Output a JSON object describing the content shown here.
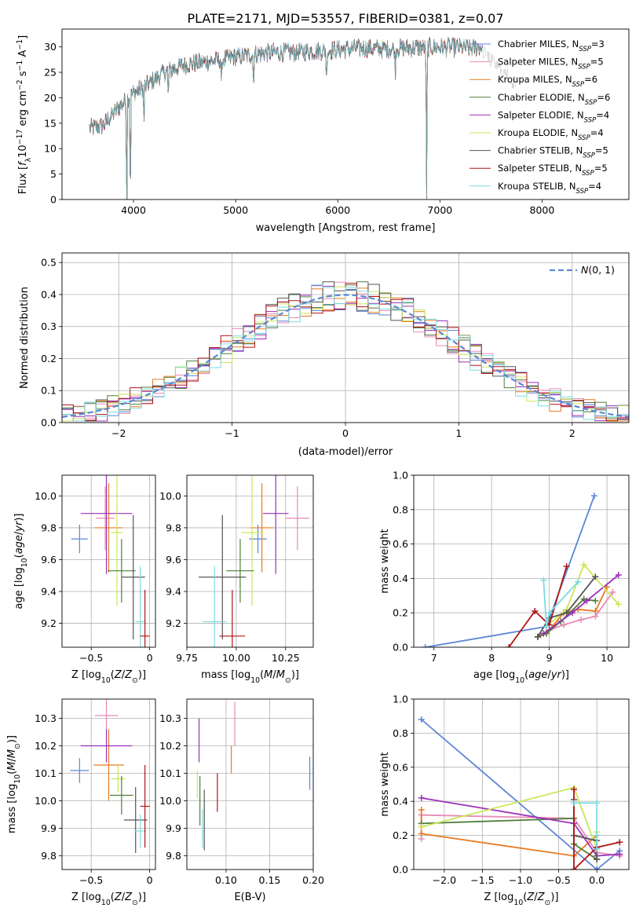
{
  "figure": {
    "title": "PLATE=2171, MJD=53557, FIBERID=0381, z=0.07"
  },
  "colors": {
    "chabrier_miles": "#5b86d6",
    "salpeter_miles": "#e88ab8",
    "kroupa_miles": "#e87b22",
    "chabrier_elodie": "#4f7d3a",
    "salpeter_elodie": "#9b30b8",
    "kroupa_elodie": "#c9e85a",
    "chabrier_stelib": "#555555",
    "salpeter_stelib": "#b01515",
    "kroupa_stelib": "#7ddbe0",
    "grid": "#b0b0b0",
    "normal": "#5b86d6"
  },
  "chart_data": [
    {
      "id": "spectrum",
      "type": "line",
      "title": "PLATE=2171, MJD=53557, FIBERID=0381, z=0.07",
      "xlabel": "wavelength [Angstrom, rest frame]",
      "ylabel": "Flux [f_λ10^-17 erg cm^-2 s^-1 A^-1]",
      "xlim": [
        3300,
        8850
      ],
      "ylim": [
        0,
        33.5
      ],
      "xticks": [
        4000,
        5000,
        6000,
        7000,
        8000
      ],
      "yticks": [
        0,
        5,
        10,
        15,
        20,
        25,
        30
      ],
      "grid": false,
      "legend_position": "top-right",
      "continuum": {
        "x": [
          3570,
          3700,
          3850,
          4000,
          4100,
          4300,
          4500,
          4700,
          5000,
          5300,
          5600,
          5900,
          6200,
          6500,
          6800,
          7100,
          7300,
          7400
        ],
        "y": [
          14,
          14.5,
          18,
          21,
          22,
          25,
          26.5,
          27,
          28,
          28.8,
          29,
          29.3,
          29.8,
          29.6,
          29.9,
          30,
          29.7,
          30
        ]
      },
      "series": [
        {
          "name": "Chabrier MILES, N_SSP=3",
          "label_main": "Chabrier MILES, N",
          "label_tail": "=3",
          "color_key": "chabrier_miles"
        },
        {
          "name": "Salpeter MILES, N_SSP=5",
          "label_main": "Salpeter MILES, N",
          "label_tail": "=5",
          "color_key": "salpeter_miles"
        },
        {
          "name": "Kroupa MILES, N_SSP=6",
          "label_main": "Kroupa MILES, N",
          "label_tail": "=6",
          "color_key": "kroupa_miles"
        },
        {
          "name": "Chabrier ELODIE, N_SSP=6",
          "label_main": "Chabrier ELODIE, N",
          "label_tail": "=6",
          "color_key": "chabrier_elodie"
        },
        {
          "name": "Salpeter ELODIE, N_SSP=4",
          "label_main": "Salpeter ELODIE, N",
          "label_tail": "=4",
          "color_key": "salpeter_elodie"
        },
        {
          "name": "Kroupa ELODIE, N_SSP=4",
          "label_main": "Kroupa ELODIE, N",
          "label_tail": "=4",
          "color_key": "kroupa_elodie"
        },
        {
          "name": "Chabrier STELIB, N_SSP=5",
          "label_main": "Chabrier STELIB, N",
          "label_tail": "=5",
          "color_key": "chabrier_stelib"
        },
        {
          "name": "Salpeter STELIB, N_SSP=5",
          "label_main": "Salpeter STELIB, N",
          "label_tail": "=5",
          "color_key": "salpeter_stelib"
        },
        {
          "name": "Kroupa STELIB, N_SSP=4",
          "label_main": "Kroupa STELIB, N",
          "label_tail": "=4",
          "color_key": "kroupa_stelib"
        }
      ]
    },
    {
      "id": "residuals",
      "type": "bar",
      "xlabel": "(data-model)/error",
      "ylabel": "Normed distribution",
      "xlim": [
        -2.5,
        2.5
      ],
      "ylim": [
        0,
        0.53
      ],
      "xticks": [
        -2,
        -1,
        0,
        1,
        2
      ],
      "yticks": [
        0.0,
        0.1,
        0.2,
        0.3,
        0.4,
        0.5
      ],
      "grid": true,
      "legend_position": "top-right",
      "legend": "N(0,1)",
      "bin_width": 0.1
    },
    {
      "id": "age_vs_Z",
      "type": "scatter",
      "xlabel": "Z [log10(Z/Z⊙)]",
      "ylabel": "age [log10(age/yr)]",
      "xlim": [
        -0.75,
        0.05
      ],
      "ylim": [
        9.05,
        10.13
      ],
      "xticks": [
        -0.5,
        0.0
      ],
      "yticks": [
        9.2,
        9.4,
        9.6,
        9.8,
        10.0
      ],
      "grid": true,
      "points": [
        {
          "color_key": "chabrier_miles",
          "x": -0.6,
          "y": 9.73,
          "xerr": 0.07,
          "yerr": 0.09
        },
        {
          "color_key": "salpeter_miles",
          "x": -0.38,
          "y": 9.86,
          "xerr": 0.08,
          "yerr": 0.2
        },
        {
          "color_key": "kroupa_miles",
          "x": -0.35,
          "y": 9.8,
          "xerr": 0.12,
          "yerr": 0.28
        },
        {
          "color_key": "salpeter_elodie",
          "x": -0.37,
          "y": 9.89,
          "xerr": 0.22,
          "yerr": 0.38
        },
        {
          "color_key": "kroupa_elodie",
          "x": -0.28,
          "y": 9.77,
          "xerr": 0.05,
          "yerr": 0.46
        },
        {
          "color_key": "chabrier_elodie",
          "x": -0.24,
          "y": 9.53,
          "xerr": 0.12,
          "yerr": 0.2
        },
        {
          "color_key": "chabrier_stelib",
          "x": -0.14,
          "y": 9.49,
          "xerr": 0.1,
          "yerr": 0.39
        },
        {
          "color_key": "kroupa_stelib",
          "x": -0.08,
          "y": 9.21,
          "xerr": 0.04,
          "yerr": 0.35
        },
        {
          "color_key": "salpeter_stelib",
          "x": -0.04,
          "y": 9.12,
          "xerr": 0.04,
          "yerr": 0.29
        }
      ]
    },
    {
      "id": "age_vs_mass",
      "type": "scatter",
      "xlabel": "mass [log10(M/M⊙)]",
      "xlim": [
        9.75,
        10.39
      ],
      "ylim": [
        9.05,
        10.13
      ],
      "xticks": [
        9.75,
        10.0,
        10.25
      ],
      "xticklabels": [
        "9.75",
        "10.00",
        "10.25"
      ],
      "yticks": [
        9.2,
        9.4,
        9.6,
        9.8,
        10.0
      ],
      "grid": true,
      "points": [
        {
          "color_key": "chabrier_miles",
          "x": 10.11,
          "y": 9.73,
          "xerr": 0.045,
          "yerr": 0.09
        },
        {
          "color_key": "salpeter_miles",
          "x": 10.31,
          "y": 9.86,
          "xerr": 0.06,
          "yerr": 0.2
        },
        {
          "color_key": "kroupa_miles",
          "x": 10.13,
          "y": 9.8,
          "xerr": 0.06,
          "yerr": 0.28
        },
        {
          "color_key": "salpeter_elodie",
          "x": 10.2,
          "y": 9.89,
          "xerr": 0.065,
          "yerr": 0.38
        },
        {
          "color_key": "kroupa_elodie",
          "x": 10.08,
          "y": 9.77,
          "xerr": 0.055,
          "yerr": 0.46
        },
        {
          "color_key": "chabrier_elodie",
          "x": 10.02,
          "y": 9.53,
          "xerr": 0.07,
          "yerr": 0.2
        },
        {
          "color_key": "chabrier_stelib",
          "x": 9.93,
          "y": 9.49,
          "xerr": 0.12,
          "yerr": 0.39
        },
        {
          "color_key": "kroupa_stelib",
          "x": 9.89,
          "y": 9.21,
          "xerr": 0.06,
          "yerr": 0.35
        },
        {
          "color_key": "salpeter_stelib",
          "x": 9.98,
          "y": 9.12,
          "xerr": 0.065,
          "yerr": 0.29
        }
      ]
    },
    {
      "id": "weight_vs_age",
      "type": "line",
      "xlabel": "age [log10(age/yr)]",
      "ylabel": "mass weight",
      "xlim": [
        6.65,
        10.38
      ],
      "ylim": [
        0,
        1.0
      ],
      "xticks": [
        7,
        8,
        9,
        10
      ],
      "yticks": [
        0.0,
        0.2,
        0.4,
        0.6,
        0.8,
        1.0
      ],
      "grid": true,
      "series": [
        {
          "color_key": "chabrier_miles",
          "x": [
            6.85,
            8.95,
            9.78
          ],
          "y": [
            0.0,
            0.12,
            0.88
          ]
        },
        {
          "color_key": "salpeter_miles",
          "x": [
            8.85,
            9.0,
            9.25,
            9.55,
            9.8,
            10.1
          ],
          "y": [
            0.07,
            0.1,
            0.13,
            0.16,
            0.18,
            0.32
          ]
        },
        {
          "color_key": "kroupa_miles",
          "x": [
            8.8,
            8.95,
            9.25,
            9.5,
            9.8,
            10.0
          ],
          "y": [
            0.06,
            0.08,
            0.2,
            0.22,
            0.21,
            0.35
          ]
        },
        {
          "color_key": "chabrier_elodie",
          "x": [
            8.8,
            8.95,
            9.2,
            9.6,
            9.8
          ],
          "y": [
            0.06,
            0.08,
            0.15,
            0.28,
            0.27
          ]
        },
        {
          "color_key": "salpeter_elodie",
          "x": [
            8.9,
            9.4,
            9.65,
            10.2
          ],
          "y": [
            0.08,
            0.2,
            0.27,
            0.42
          ]
        },
        {
          "color_key": "kroupa_elodie",
          "x": [
            8.95,
            9.3,
            9.6,
            10.2
          ],
          "y": [
            0.12,
            0.22,
            0.48,
            0.25
          ]
        },
        {
          "color_key": "chabrier_stelib",
          "x": [
            8.8,
            9.0,
            9.3,
            9.8
          ],
          "y": [
            0.06,
            0.17,
            0.2,
            0.41
          ]
        },
        {
          "color_key": "salpeter_stelib",
          "x": [
            8.3,
            8.75,
            9.0,
            9.3
          ],
          "y": [
            0.0,
            0.21,
            0.13,
            0.47
          ]
        },
        {
          "color_key": "kroupa_stelib",
          "x": [
            8.9,
            8.95,
            9.0,
            9.5
          ],
          "y": [
            0.39,
            0.12,
            0.2,
            0.38
          ]
        }
      ]
    },
    {
      "id": "mass_vs_Z",
      "type": "scatter",
      "xlabel": "Z [log10(Z/Z⊙)]",
      "ylabel": "mass [log10(M/M⊙)]",
      "xlim": [
        -0.75,
        0.05
      ],
      "ylim": [
        9.75,
        10.37
      ],
      "xticks": [
        -0.5,
        0.0
      ],
      "yticks": [
        9.8,
        9.9,
        10.0,
        10.1,
        10.2,
        10.3
      ],
      "grid": true,
      "points": [
        {
          "color_key": "chabrier_miles",
          "x": -0.6,
          "y": 10.11,
          "xerr": 0.08,
          "yerr": 0.045
        },
        {
          "color_key": "salpeter_miles",
          "x": -0.37,
          "y": 10.31,
          "xerr": 0.1,
          "yerr": 0.06
        },
        {
          "color_key": "kroupa_miles",
          "x": -0.35,
          "y": 10.13,
          "xerr": 0.13,
          "yerr": 0.13
        },
        {
          "color_key": "salpeter_elodie",
          "x": -0.37,
          "y": 10.2,
          "xerr": 0.22,
          "yerr": 0.06
        },
        {
          "color_key": "kroupa_elodie",
          "x": -0.27,
          "y": 10.08,
          "xerr": 0.06,
          "yerr": 0.05
        },
        {
          "color_key": "chabrier_elodie",
          "x": -0.24,
          "y": 10.02,
          "xerr": 0.1,
          "yerr": 0.07
        },
        {
          "color_key": "chabrier_stelib",
          "x": -0.12,
          "y": 9.93,
          "xerr": 0.1,
          "yerr": 0.12
        },
        {
          "color_key": "kroupa_stelib",
          "x": -0.08,
          "y": 9.89,
          "xerr": 0.05,
          "yerr": 0.06
        },
        {
          "color_key": "salpeter_stelib",
          "x": -0.04,
          "y": 9.98,
          "xerr": 0.04,
          "yerr": 0.15
        }
      ]
    },
    {
      "id": "mass_vs_ebv",
      "type": "scatter",
      "xlabel": "E(B-V)",
      "xlim": [
        0.055,
        0.2
      ],
      "ylim": [
        9.75,
        10.37
      ],
      "xticks": [
        0.1,
        0.15,
        0.2
      ],
      "xticklabels": [
        "0.10",
        "0.15",
        "0.20"
      ],
      "yticks": [
        9.8,
        9.9,
        10.0,
        10.1,
        10.2,
        10.3
      ],
      "grid": true,
      "points": [
        {
          "color_key": "chabrier_miles",
          "x": 0.196,
          "y": 10.1,
          "xerr": 0,
          "yerr": 0.06
        },
        {
          "color_key": "salpeter_miles",
          "x": 0.11,
          "y": 10.28,
          "xerr": 0,
          "yerr": 0.08
        },
        {
          "color_key": "kroupa_miles",
          "x": 0.106,
          "y": 10.15,
          "xerr": 0,
          "yerr": 0.05
        },
        {
          "color_key": "salpeter_elodie",
          "x": 0.069,
          "y": 10.22,
          "xerr": 0,
          "yerr": 0.08
        },
        {
          "color_key": "kroupa_elodie",
          "x": 0.067,
          "y": 10.06,
          "xerr": 0,
          "yerr": 0.05
        },
        {
          "color_key": "chabrier_elodie",
          "x": 0.07,
          "y": 10.0,
          "xerr": 0,
          "yerr": 0.09
        },
        {
          "color_key": "chabrier_stelib",
          "x": 0.075,
          "y": 9.93,
          "xerr": 0,
          "yerr": 0.11
        },
        {
          "color_key": "kroupa_stelib",
          "x": 0.073,
          "y": 9.9,
          "xerr": 0,
          "yerr": 0.07
        },
        {
          "color_key": "salpeter_stelib",
          "x": 0.09,
          "y": 10.03,
          "xerr": 0,
          "yerr": 0.07
        }
      ]
    },
    {
      "id": "weight_vs_Z",
      "type": "line",
      "xlabel": "Z [log10(Z/Z⊙)]",
      "ylabel": "mass weight",
      "xlim": [
        -2.4,
        0.42
      ],
      "ylim": [
        0,
        1.0
      ],
      "xticks": [
        -2.0,
        -1.5,
        -1.0,
        -0.5,
        0.0
      ],
      "xticklabels": [
        "−2.0",
        "−1.5",
        "−1.0",
        "−0.5",
        "0.0"
      ],
      "yticks": [
        0.0,
        0.2,
        0.4,
        0.6,
        0.8,
        1.0
      ],
      "grid": true,
      "series": [
        {
          "color_key": "chabrier_miles",
          "x": [
            -2.3,
            0.0,
            0.3
          ],
          "y": [
            0.88,
            0.0,
            0.11
          ]
        },
        {
          "color_key": "salpeter_miles",
          "x": [
            -2.3,
            -2.3,
            -0.3,
            0.0,
            0.3
          ],
          "y": [
            0.18,
            0.32,
            0.3,
            0.1,
            0.08
          ]
        },
        {
          "color_key": "kroupa_miles",
          "x": [
            -2.3,
            -2.3,
            -0.3,
            0.0,
            0.0
          ],
          "y": [
            0.35,
            0.21,
            0.08,
            0.2,
            0.06
          ]
        },
        {
          "color_key": "chabrier_elodie",
          "x": [
            -2.3,
            -0.3,
            -0.3,
            0.0
          ],
          "y": [
            0.27,
            0.3,
            0.15,
            0.06
          ]
        },
        {
          "color_key": "salpeter_elodie",
          "x": [
            -2.3,
            -0.3,
            0.0,
            0.3
          ],
          "y": [
            0.42,
            0.27,
            0.08,
            0.09
          ]
        },
        {
          "color_key": "kroupa_elodie",
          "x": [
            -2.3,
            -0.3,
            0.0,
            0.0
          ],
          "y": [
            0.25,
            0.48,
            0.12,
            0.22
          ]
        },
        {
          "color_key": "chabrier_stelib",
          "x": [
            -0.3,
            -0.3,
            0.0,
            0.0
          ],
          "y": [
            0.41,
            0.2,
            0.17,
            0.06
          ]
        },
        {
          "color_key": "salpeter_stelib",
          "x": [
            -0.3,
            -0.3,
            -0.3,
            0.0,
            0.3
          ],
          "y": [
            0.0,
            0.47,
            0.0,
            0.13,
            0.16
          ]
        },
        {
          "color_key": "kroupa_stelib",
          "x": [
            -0.3,
            0.0,
            0.0,
            0.0
          ],
          "y": [
            0.39,
            0.39,
            0.2,
            0.12
          ]
        }
      ]
    }
  ]
}
